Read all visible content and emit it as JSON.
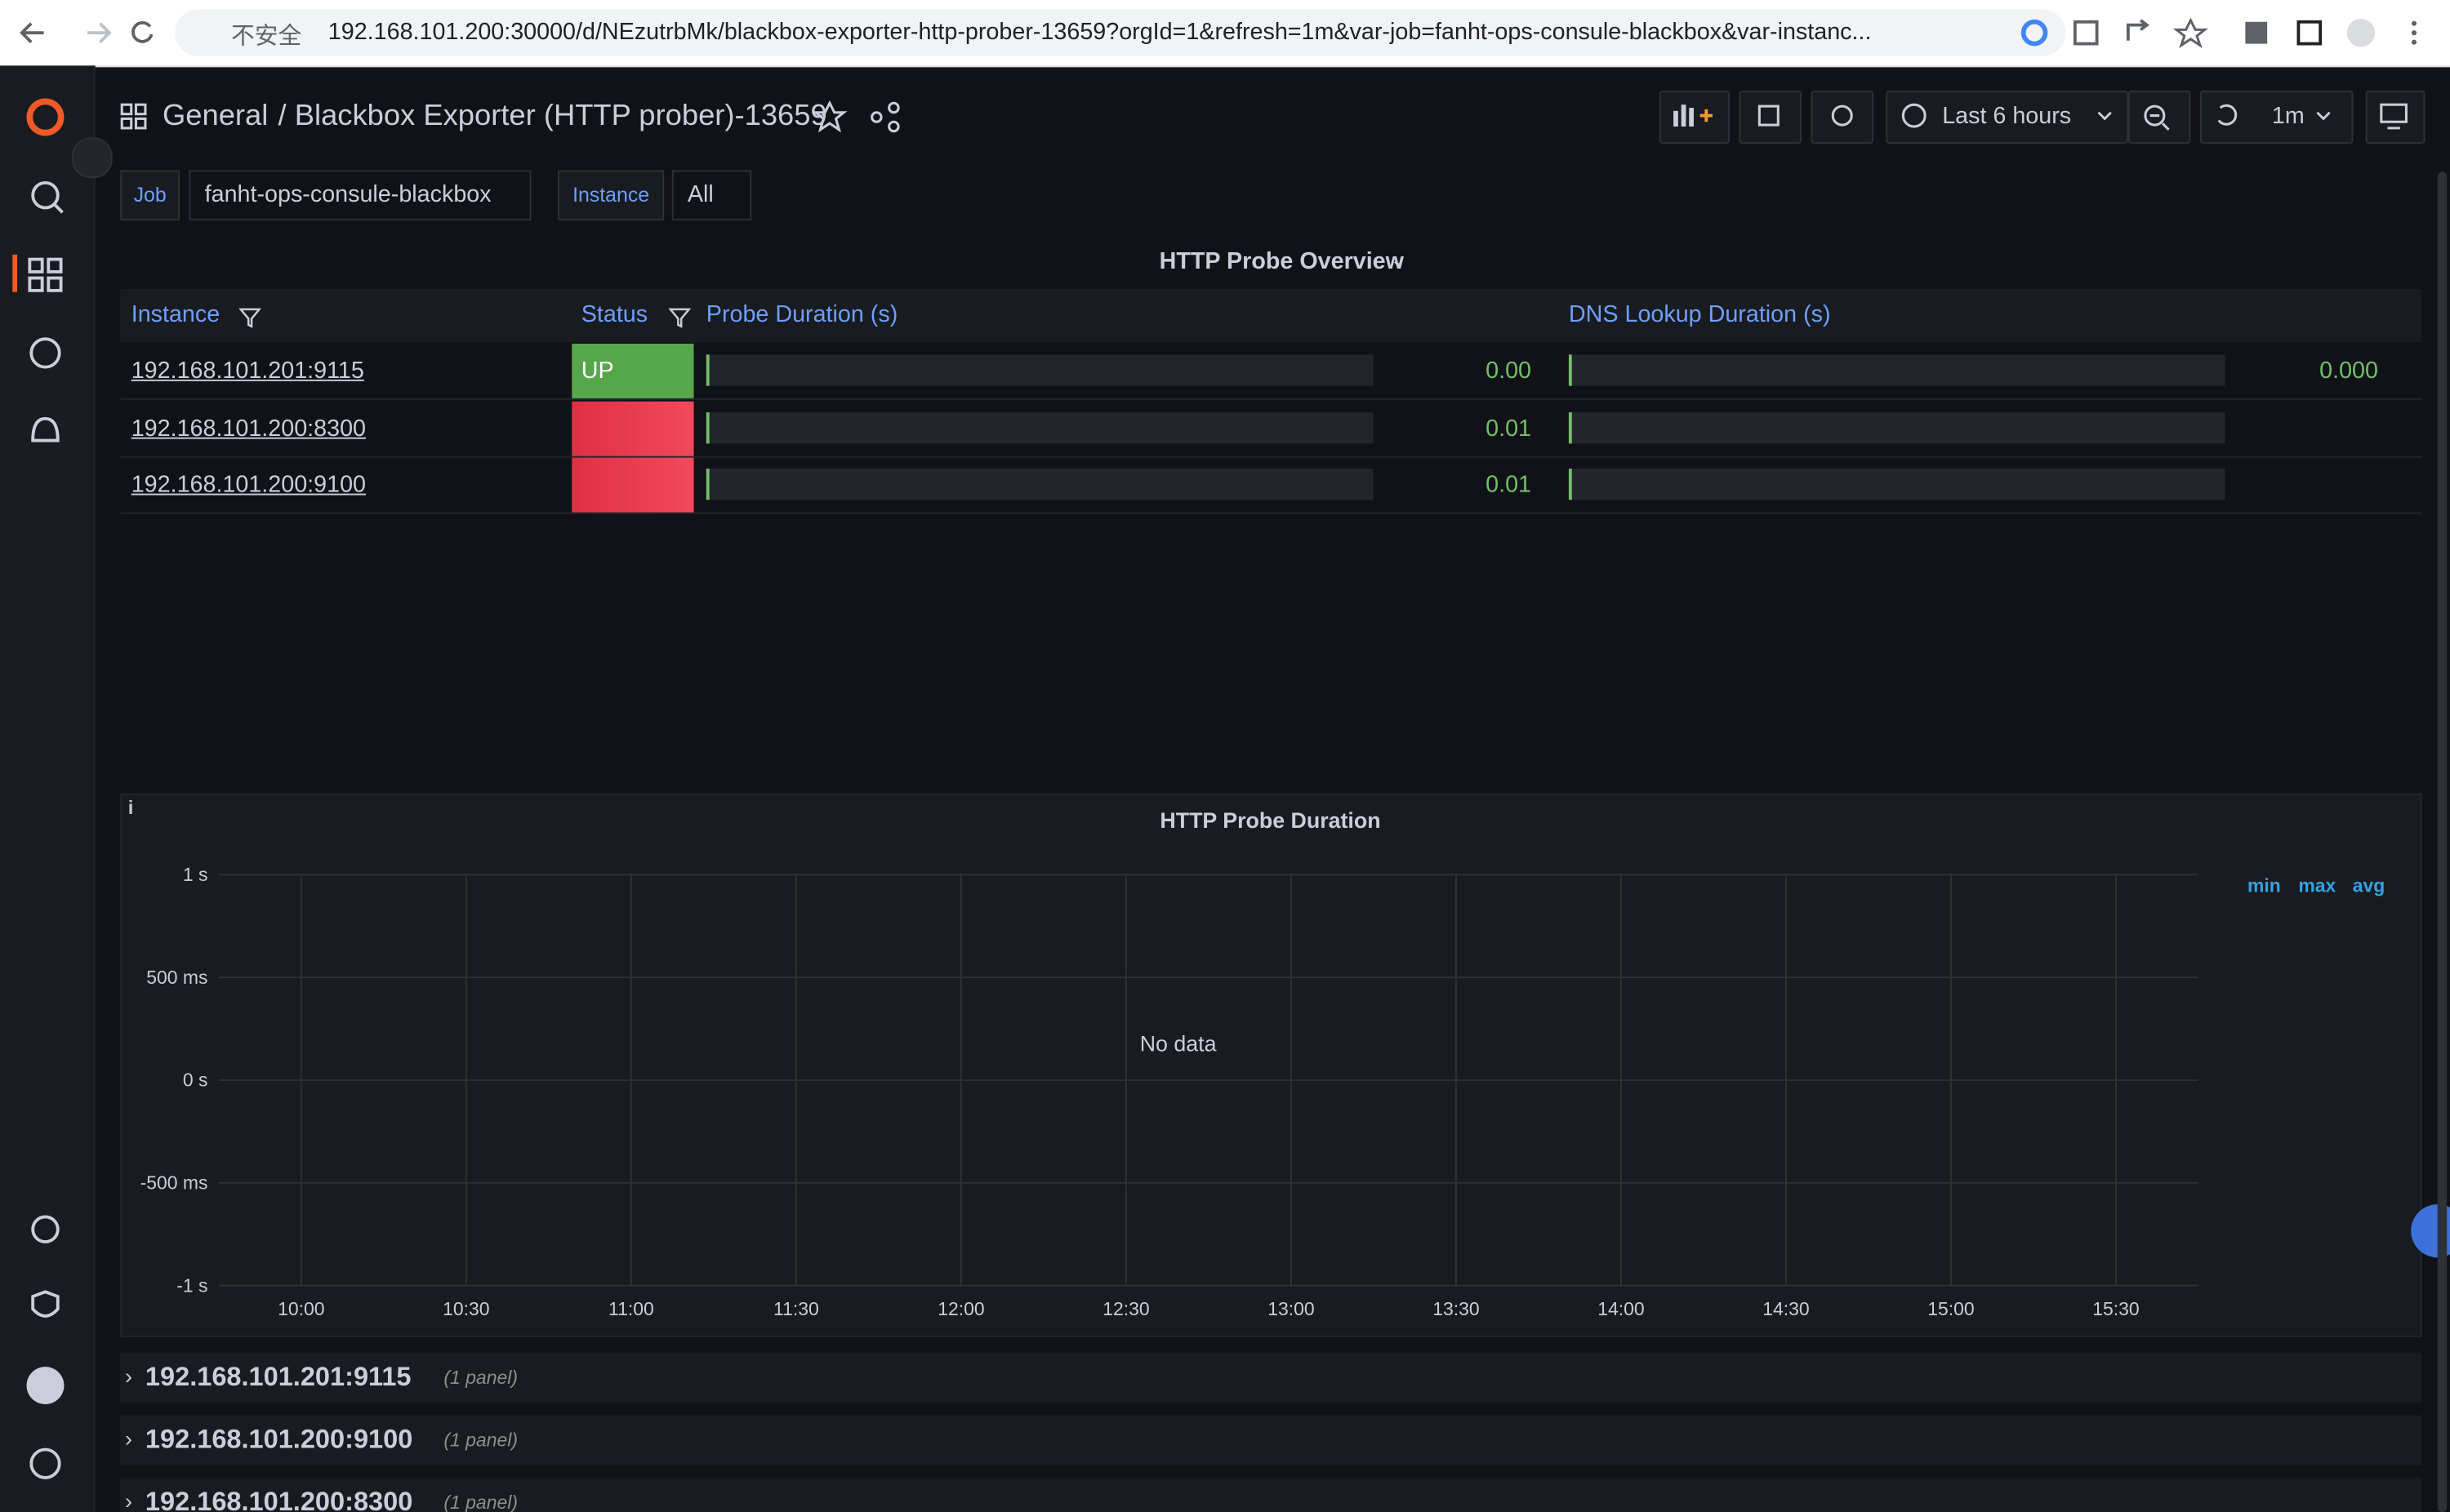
{
  "browser": {
    "insecure_label": "不安全",
    "url": "192.168.101.200:30000/d/NEzutrbMk/blackbox-exporter-http-prober-13659?orgId=1&refresh=1m&var-job=fanht-ops-consule-blackbox&var-instanc..."
  },
  "header": {
    "folder": "General",
    "title": "/ Blackbox Exporter (HTTP prober)-13659",
    "time_range": "Last 6 hours",
    "refresh": "1m"
  },
  "variables": [
    {
      "label": "Job",
      "value": "fanht-ops-consule-blackbox"
    },
    {
      "label": "Instance",
      "value": "All"
    }
  ],
  "table": {
    "title": "HTTP Probe Overview",
    "columns": [
      "Instance",
      "Status",
      "Probe Duration (s)",
      "DNS Lookup Duration (s)"
    ],
    "rows": [
      [
        "192.168.101.201:9115",
        "UP",
        "0.00",
        "0.000"
      ],
      [
        "192.168.101.200:8300",
        null,
        "0.01",
        null
      ],
      [
        "192.168.101.200:9100",
        null,
        "0.01",
        null
      ]
    ]
  },
  "chart_data": {
    "type": "line",
    "title": "HTTP Probe Duration",
    "no_data_text": "No data",
    "grid": true,
    "ylim": [
      -1,
      1
    ],
    "yticks": [
      {
        "value": 1,
        "label": "1 s"
      },
      {
        "value": 0.5,
        "label": "500 ms"
      },
      {
        "value": 0,
        "label": "0 s"
      },
      {
        "value": -0.5,
        "label": "-500 ms"
      },
      {
        "value": -1,
        "label": "-1 s"
      }
    ],
    "xlim": [
      585,
      945
    ],
    "xticks": [
      {
        "value": 600,
        "label": "10:00"
      },
      {
        "value": 630,
        "label": "10:30"
      },
      {
        "value": 660,
        "label": "11:00"
      },
      {
        "value": 690,
        "label": "11:30"
      },
      {
        "value": 720,
        "label": "12:00"
      },
      {
        "value": 750,
        "label": "12:30"
      },
      {
        "value": 780,
        "label": "13:00"
      },
      {
        "value": 810,
        "label": "13:30"
      },
      {
        "value": 840,
        "label": "14:00"
      },
      {
        "value": 870,
        "label": "14:30"
      },
      {
        "value": 900,
        "label": "15:00"
      },
      {
        "value": 930,
        "label": "15:30"
      }
    ],
    "legend_columns": [
      "min",
      "max",
      "avg"
    ],
    "series": []
  },
  "rows": [
    {
      "title": "192.168.101.201:9115",
      "count": "(1 panel)"
    },
    {
      "title": "192.168.101.200:9100",
      "count": "(1 panel)"
    },
    {
      "title": "192.168.101.200:8300",
      "count": "(1 panel)"
    }
  ]
}
